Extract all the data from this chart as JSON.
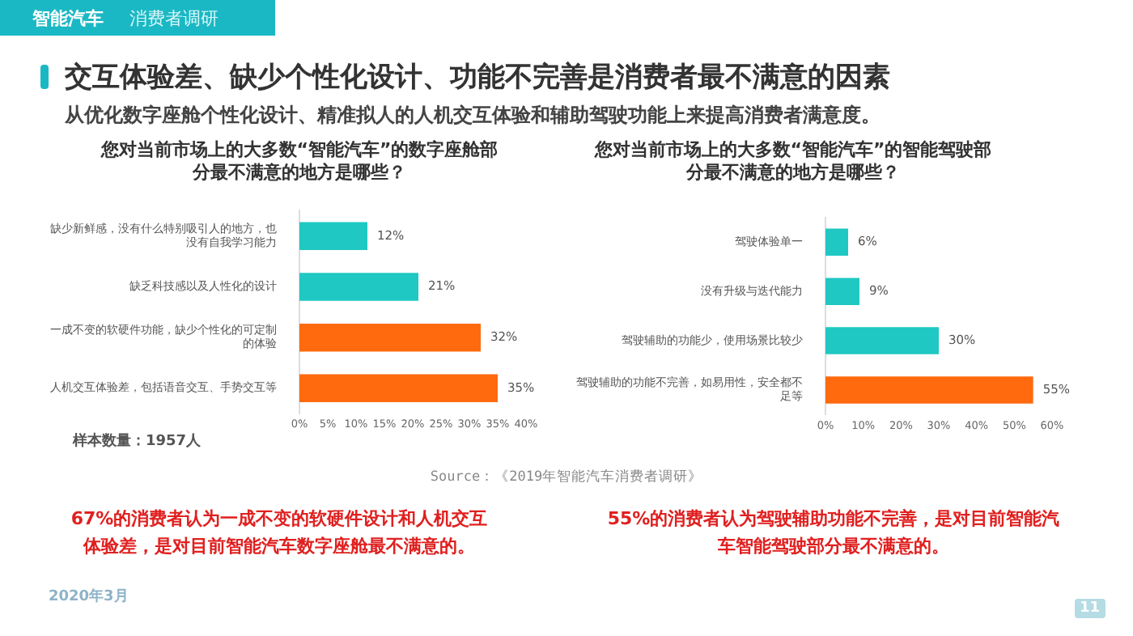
{
  "chart_data": [
    {
      "type": "bar",
      "orientation": "horizontal",
      "title": "您对当前市场上的大多数“智能汽车”的数字座舱部分最不满意的地方是哪些？",
      "categories": [
        "缺少新鲜感，没有什么特别吸引人的地方，也没有自我学习能力",
        "缺乏科技感以及人性化的设计",
        "一成不变的软硬件功能，缺少个性化的可定制的体验",
        "人机交互体验差，包括语音交互、手势交互等"
      ],
      "values": [
        12,
        21,
        32,
        35
      ],
      "colors": [
        "#1fc8c3",
        "#1fc8c3",
        "#ff6a0f",
        "#ff6a0f"
      ],
      "value_labels": [
        "12%",
        "21%",
        "32%",
        "35%"
      ],
      "xlim": [
        0,
        40
      ],
      "xticks": [
        {
          "value": 0,
          "label": "0%"
        },
        {
          "value": 5,
          "label": "5%"
        },
        {
          "value": 10,
          "label": "10%"
        },
        {
          "value": 15,
          "label": "15%"
        },
        {
          "value": 20,
          "label": "20%"
        },
        {
          "value": 25,
          "label": "25%"
        },
        {
          "value": 30,
          "label": "30%"
        },
        {
          "value": 35,
          "label": "35%"
        },
        {
          "value": 40,
          "label": "40%"
        }
      ],
      "grid": false,
      "legend": false,
      "annotations": [
        "智能汽车",
        "消费者调研",
        "交互体验差、缺少个性化设计、功能不完善是消费者最不满意的因素",
        "从优化数字座舱个性化设计、精准拟人的人机交互体验和辅助驾驶功能上来提高消费者满意度。",
        "样本数量：1957人",
        "Source：《2019年智能汽车消费者调研》",
        "67%的消费者认为一成不变的软硬件设计和人机交互体验差，是对目前智能汽车数字座舱最不满意的。",
        "2020年3月",
        "11"
      ]
    },
    {
      "type": "bar",
      "orientation": "horizontal",
      "title": "您对当前市场上的大多数“智能汽车”的智能驾驶部分最不满意的地方是哪些？",
      "categories": [
        "驾驶体验单一",
        "没有升级与迭代能力",
        "驾驶辅助的功能少，使用场景比较少",
        "驾驶辅助的功能不完善，如易用性，安全都不足等"
      ],
      "values": [
        6,
        9,
        30,
        55
      ],
      "colors": [
        "#1fc8c3",
        "#1fc8c3",
        "#1fc8c3",
        "#ff6a0f"
      ],
      "value_labels": [
        "6%",
        "9%",
        "30%",
        "55%"
      ],
      "xlim": [
        0,
        60
      ],
      "xticks": [
        {
          "value": 0,
          "label": "0%"
        },
        {
          "value": 10,
          "label": "10%"
        },
        {
          "value": 20,
          "label": "20%"
        },
        {
          "value": 30,
          "label": "30%"
        },
        {
          "value": 40,
          "label": "40%"
        },
        {
          "value": 50,
          "label": "50%"
        },
        {
          "value": 60,
          "label": "60%"
        }
      ],
      "grid": false,
      "legend": false,
      "annotations": [
        "55%的消费者认为驾驶辅助功能不完善，是对目前智能汽车智能驾驶部分最不满意的。"
      ]
    }
  ]
}
